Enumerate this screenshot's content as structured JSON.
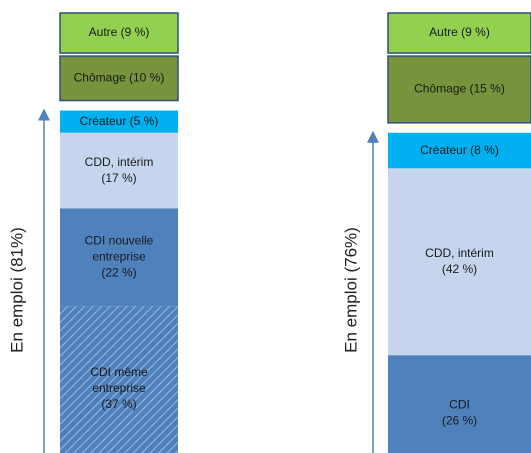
{
  "chart_data": {
    "type": "stacked_column",
    "columns": [
      {
        "axis_label": "En emploi (81%)",
        "segments": [
          {
            "label": [
              "Autre (9 %)"
            ],
            "value": 9,
            "color": "#92d050",
            "group": "top"
          },
          {
            "label": [
              "Chômage (10 %)"
            ],
            "value": 10,
            "color": "#77933c",
            "group": "top"
          },
          {
            "label": [
              "Créateur (5 %)"
            ],
            "value": 5,
            "color": "#00b0f0",
            "group": "employed"
          },
          {
            "label": [
              "CDD, intérim",
              "(17 %)"
            ],
            "value": 17,
            "color": "#c5d5ee",
            "group": "employed"
          },
          {
            "label": [
              "CDI nouvelle",
              "entreprise",
              "(22 %)"
            ],
            "value": 22,
            "color": "#4f81bd",
            "group": "employed"
          },
          {
            "label": [
              "CDI même",
              "entreprise",
              "(37 %)"
            ],
            "value": 37,
            "color": "#4f81bd",
            "group": "employed",
            "pattern": "hatch"
          }
        ]
      },
      {
        "axis_label": "En emploi (76%)",
        "segments": [
          {
            "label": [
              "Autre (9 %)"
            ],
            "value": 9,
            "color": "#92d050",
            "group": "top"
          },
          {
            "label": [
              "Chômage (15 %)"
            ],
            "value": 15,
            "color": "#77933c",
            "group": "top"
          },
          {
            "label": [
              "Créateur (8 %)"
            ],
            "value": 8,
            "color": "#00b0f0",
            "group": "employed"
          },
          {
            "label": [
              "CDD, intérim",
              "(42 %)"
            ],
            "value": 42,
            "color": "#c5d5ee",
            "group": "employed"
          },
          {
            "label": [
              "CDI",
              "(26 %)"
            ],
            "value": 26,
            "color": "#4f81bd",
            "group": "employed"
          }
        ]
      }
    ]
  }
}
